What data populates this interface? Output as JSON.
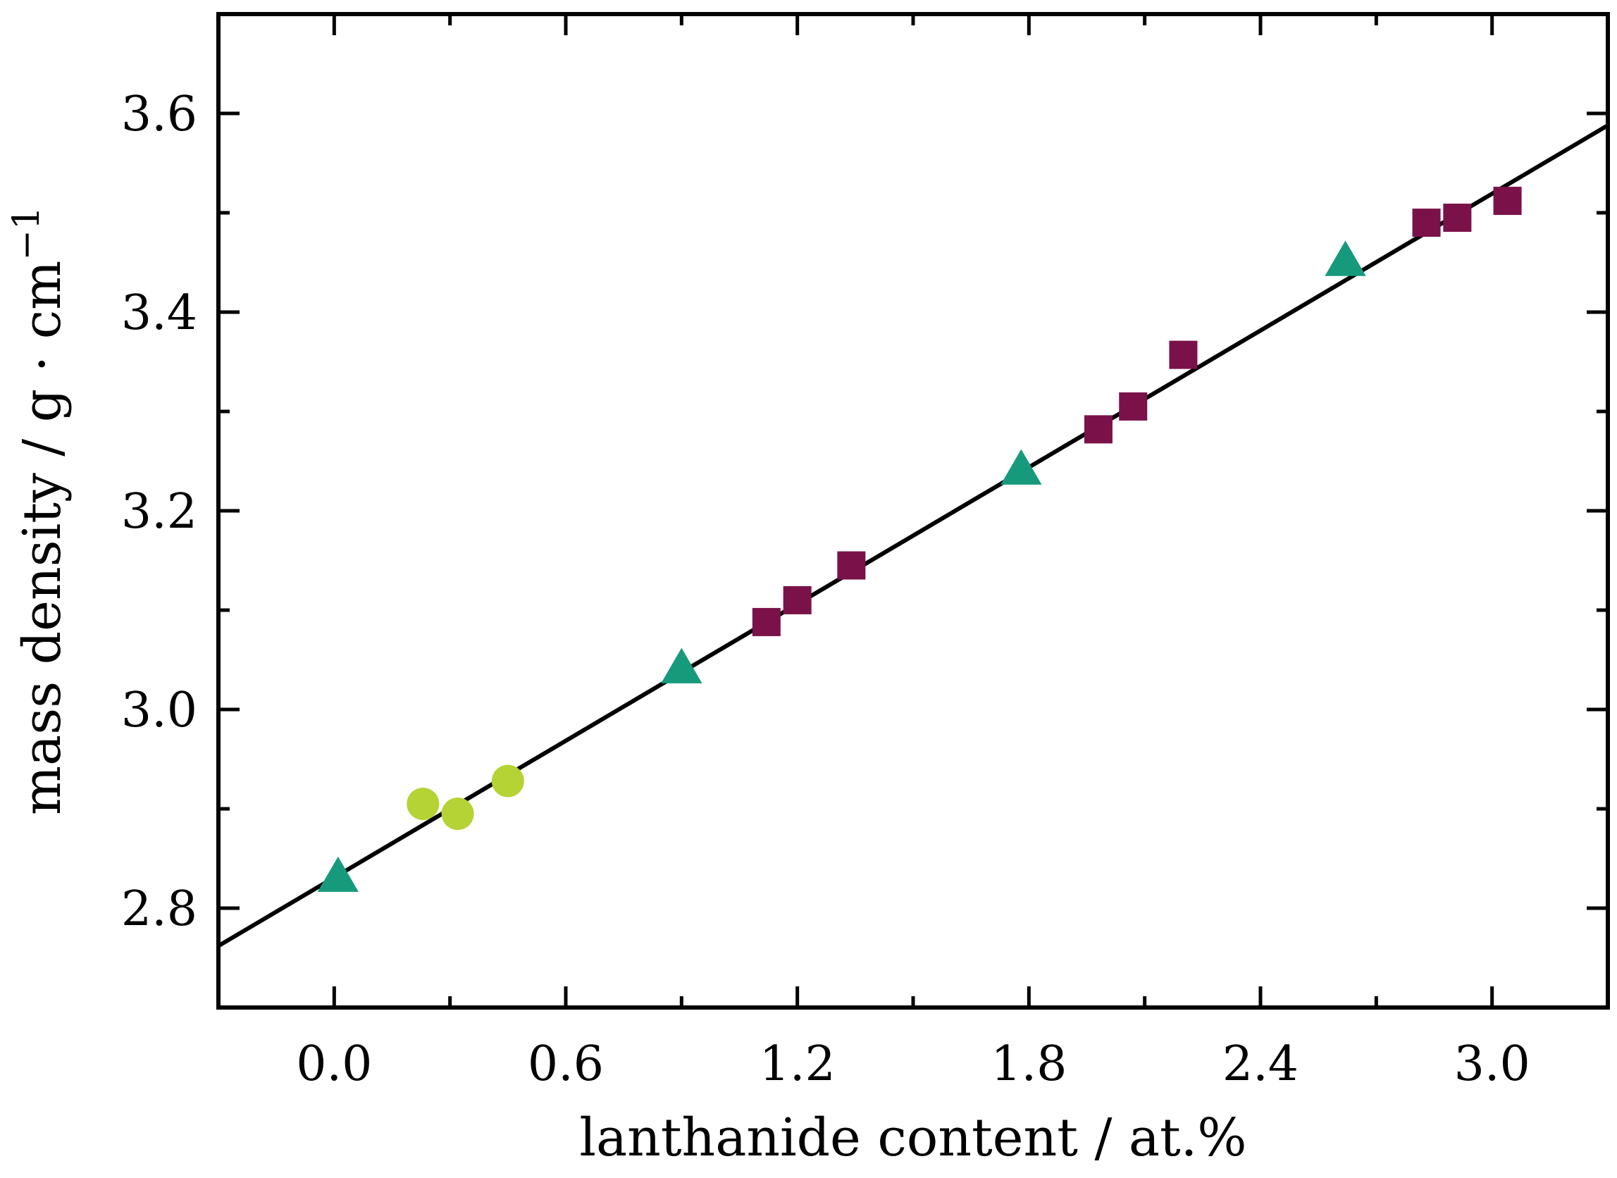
{
  "chart_data": {
    "type": "scatter",
    "title": "",
    "xlabel": "lanthanide content / at.%",
    "ylabel": "mass density / g · cm",
    "ylabel_sup": "−1",
    "xlim": [
      -0.3,
      3.3
    ],
    "ylim": [
      2.7,
      3.7
    ],
    "x_ticks_major": [
      0.0,
      0.6,
      1.2,
      1.8,
      2.4,
      3.0
    ],
    "x_tick_labels": [
      "0.0",
      "0.6",
      "1.2",
      "1.8",
      "2.4",
      "3.0"
    ],
    "x_ticks_minor": [
      0.3,
      0.9,
      1.5,
      2.1,
      2.7
    ],
    "y_ticks_major": [
      2.8,
      3.0,
      3.2,
      3.4,
      3.6
    ],
    "y_tick_labels": [
      "2.8",
      "3.0",
      "3.2",
      "3.4",
      "3.6"
    ],
    "y_ticks_minor": [
      2.9,
      3.1,
      3.3,
      3.5
    ],
    "grid": false,
    "legend": "none",
    "series": [
      {
        "marker": "triangle",
        "color": "#179a7c",
        "points": [
          [
            0.01,
            2.83
          ],
          [
            0.9,
            3.04
          ],
          [
            1.78,
            3.24
          ],
          [
            2.62,
            3.45
          ]
        ]
      },
      {
        "marker": "circle",
        "color": "#b5d334",
        "points": [
          [
            0.23,
            2.905
          ],
          [
            0.32,
            2.895
          ],
          [
            0.45,
            2.928
          ]
        ]
      },
      {
        "marker": "square",
        "color": "#7a1249",
        "points": [
          [
            1.12,
            3.088
          ],
          [
            1.2,
            3.11
          ],
          [
            1.34,
            3.145
          ],
          [
            1.98,
            3.282
          ],
          [
            2.07,
            3.305
          ],
          [
            2.2,
            3.357
          ],
          [
            2.83,
            3.49
          ],
          [
            2.91,
            3.495
          ],
          [
            3.04,
            3.512
          ]
        ]
      }
    ],
    "fit_line": {
      "color": "#000000",
      "x": [
        -0.3,
        3.3
      ],
      "y": [
        2.762,
        3.588
      ]
    }
  }
}
